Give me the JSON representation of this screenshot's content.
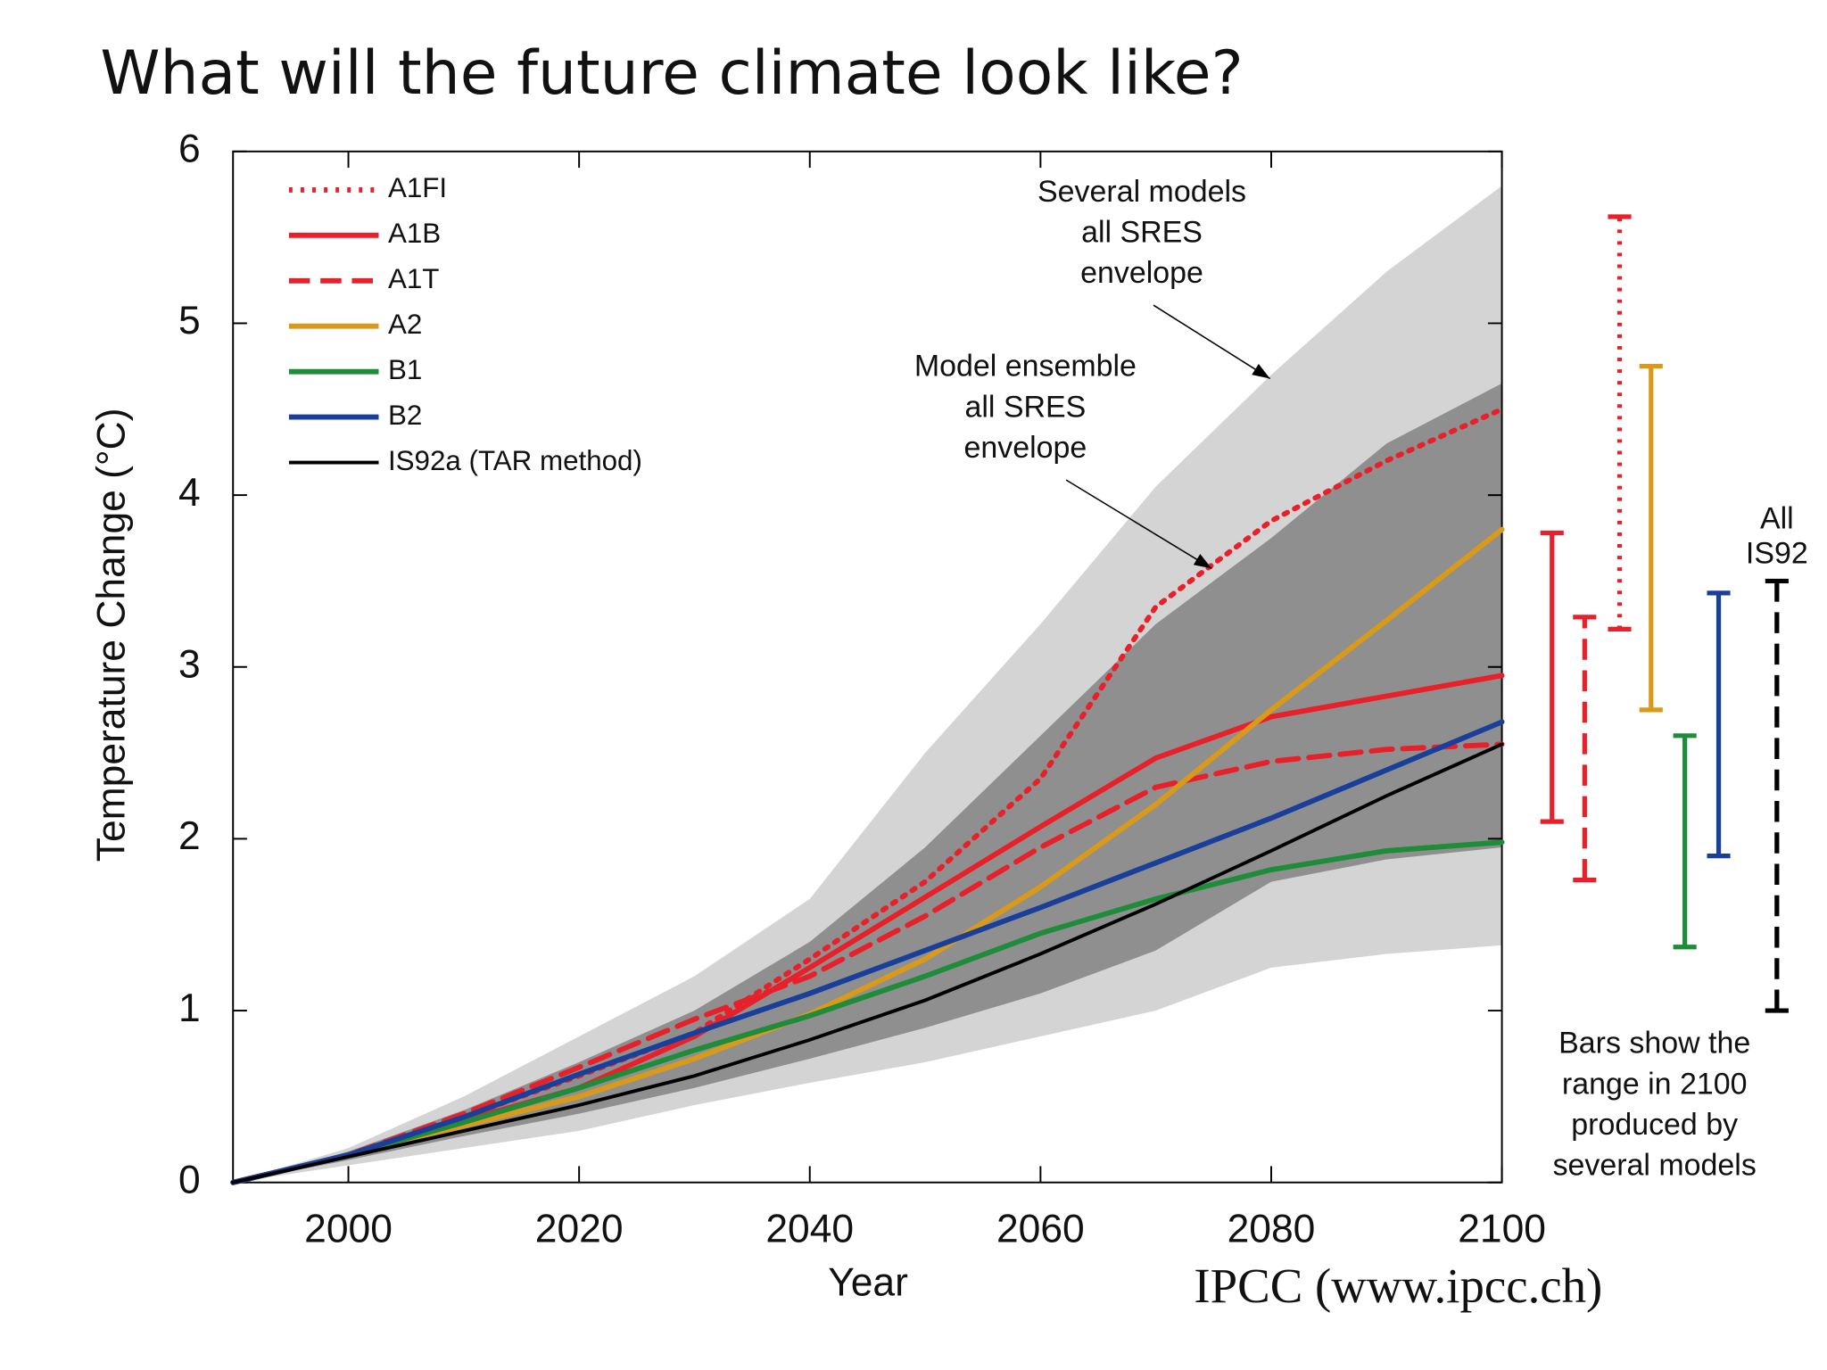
{
  "chart_data": {
    "type": "line",
    "title": "What will the future climate look like?",
    "xlabel": "Year",
    "ylabel": "Temperature Change (°C)",
    "source": "IPCC (www.ipcc.ch)",
    "xlim": [
      1990,
      2100
    ],
    "xticks": [
      2000,
      2020,
      2040,
      2060,
      2080,
      2100
    ],
    "ylim": [
      0,
      6
    ],
    "yticks": [
      0,
      1,
      2,
      3,
      4,
      5,
      6
    ],
    "x": [
      1990,
      2000,
      2010,
      2020,
      2030,
      2040,
      2050,
      2060,
      2070,
      2080,
      2090,
      2100
    ],
    "envelopes": [
      {
        "name_lines": [
          "Several models",
          "all SRES",
          "envelope"
        ],
        "color": "#d4d4d4",
        "lower": [
          0,
          0.1,
          0.2,
          0.3,
          0.45,
          0.58,
          0.7,
          0.85,
          1.0,
          1.25,
          1.33,
          1.38
        ],
        "upper": [
          0,
          0.2,
          0.5,
          0.85,
          1.2,
          1.65,
          2.5,
          3.25,
          4.05,
          4.7,
          5.3,
          5.8
        ]
      },
      {
        "name_lines": [
          "Model ensemble",
          "all SRES",
          "envelope"
        ],
        "color": "#8f8f8f",
        "lower": [
          0,
          0.13,
          0.27,
          0.4,
          0.55,
          0.72,
          0.9,
          1.1,
          1.35,
          1.75,
          1.88,
          1.95
        ],
        "upper": [
          0,
          0.18,
          0.42,
          0.7,
          1.0,
          1.4,
          1.95,
          2.6,
          3.25,
          3.75,
          4.3,
          4.65
        ]
      }
    ],
    "series": [
      {
        "name": "A1FI",
        "color": "#e8202a",
        "dash": "dotted",
        "values": [
          0,
          0.16,
          0.38,
          0.62,
          0.87,
          1.3,
          1.75,
          2.35,
          3.35,
          3.85,
          4.2,
          4.5
        ],
        "range_2100": [
          3.22,
          5.62
        ]
      },
      {
        "name": "A1B",
        "color": "#e8202a",
        "dash": "solid",
        "values": [
          0,
          0.16,
          0.36,
          0.55,
          0.85,
          1.25,
          1.66,
          2.07,
          2.47,
          2.71,
          2.83,
          2.95
        ],
        "range_2100": [
          2.1,
          3.78
        ]
      },
      {
        "name": "A1T",
        "color": "#e8202a",
        "dash": "dashed",
        "values": [
          0,
          0.16,
          0.4,
          0.67,
          0.95,
          1.2,
          1.55,
          1.95,
          2.3,
          2.45,
          2.52,
          2.55
        ],
        "range_2100": [
          1.76,
          3.29
        ]
      },
      {
        "name": "A2",
        "color": "#d99a1a",
        "dash": "solid",
        "values": [
          0,
          0.16,
          0.33,
          0.5,
          0.72,
          0.98,
          1.3,
          1.72,
          2.2,
          2.75,
          3.27,
          3.8
        ],
        "range_2100": [
          2.75,
          4.75
        ]
      },
      {
        "name": "B1",
        "color": "#1f8c3a",
        "dash": "solid",
        "values": [
          0,
          0.16,
          0.35,
          0.55,
          0.77,
          0.97,
          1.2,
          1.45,
          1.65,
          1.82,
          1.93,
          1.98
        ],
        "range_2100": [
          1.37,
          2.6
        ]
      },
      {
        "name": "B2",
        "color": "#1a3f9a",
        "dash": "solid",
        "values": [
          0,
          0.16,
          0.38,
          0.63,
          0.87,
          1.1,
          1.35,
          1.6,
          1.86,
          2.12,
          2.4,
          2.68
        ],
        "range_2100": [
          1.9,
          3.43
        ]
      },
      {
        "name": "IS92a (TAR method)",
        "color": "#000000",
        "dash": "solid",
        "values": [
          0,
          0.15,
          0.3,
          0.45,
          0.62,
          0.83,
          1.06,
          1.33,
          1.62,
          1.93,
          2.25,
          2.55
        ],
        "range_2100": [
          1.0,
          3.5
        ],
        "range_dash": "dashed",
        "range_label_lines": [
          "All",
          "IS92"
        ]
      }
    ],
    "bars_note_lines": [
      "Bars show the",
      "range in 2100",
      "produced by",
      "several models"
    ]
  }
}
